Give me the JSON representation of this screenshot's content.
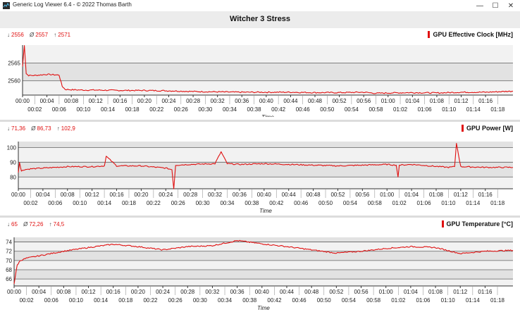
{
  "window": {
    "title": "Generic Log Viewer 6.4 - © 2022 Thomas Barth",
    "minimize_glyph": "—",
    "maximize_glyph": "☐",
    "close_glyph": "✕"
  },
  "page": {
    "title": "Witcher 3 Stress"
  },
  "colors": {
    "series": "#e01010",
    "band_light": "#f2f2f2",
    "band_dark": "#e2e2e2",
    "grid": "#606060"
  },
  "x_ticks_top": [
    "00:00",
    "00:04",
    "00:08",
    "00:12",
    "00:16",
    "00:20",
    "00:24",
    "00:28",
    "00:32",
    "00:36",
    "00:40",
    "00:44",
    "00:48",
    "00:52",
    "00:56",
    "01:00",
    "01:04",
    "01:08",
    "01:12",
    "01:16"
  ],
  "x_ticks_bottom": [
    "00:02",
    "00:06",
    "00:10",
    "00:14",
    "00:18",
    "00:22",
    "00:26",
    "00:30",
    "00:34",
    "00:38",
    "00:42",
    "00:46",
    "00:50",
    "00:54",
    "00:58",
    "01:02",
    "01:06",
    "01:10",
    "01:14",
    "01:18"
  ],
  "panels": [
    {
      "stats": {
        "min_symbol": "↓",
        "min": "2556",
        "avg_symbol": "Ø",
        "avg": "2557",
        "max_symbol": "↑",
        "max": "2571"
      },
      "legend": "GPU Effective Clock [MHz]",
      "xlabel": "Time"
    },
    {
      "stats": {
        "min_symbol": "↓",
        "min": "71,36",
        "avg_symbol": "Ø",
        "avg": "86,73",
        "max_symbol": "↑",
        "max": "102,9"
      },
      "legend": "GPU Power [W]",
      "xlabel": "Time"
    },
    {
      "stats": {
        "min_symbol": "↓",
        "min": "65",
        "avg_symbol": "Ø",
        "avg": "72,26",
        "max_symbol": "↑",
        "max": "74,5"
      },
      "legend": "GPU Temperature [°C]",
      "xlabel": "Time"
    }
  ],
  "chart_data": [
    {
      "type": "line",
      "ylabel": "GPU Effective Clock [MHz]",
      "xlabel": "Time",
      "xlim_minutes": [
        0,
        80.5
      ],
      "ylim": [
        2556,
        2570
      ],
      "yticks": [
        2560,
        2565
      ],
      "grid": true,
      "series": [
        {
          "name": "GPU Effective Clock [MHz]",
          "x": [
            0,
            0.3,
            0.6,
            1,
            2,
            4,
            6,
            6.5,
            7,
            8,
            10,
            12,
            16,
            20,
            24,
            28,
            32,
            36,
            40,
            44,
            48,
            52,
            56,
            58,
            60,
            64,
            68,
            72,
            76,
            80.5
          ],
          "y": [
            2564,
            2570,
            2562,
            2561.5,
            2561.5,
            2561.8,
            2561.6,
            2558.5,
            2557.6,
            2557.5,
            2557.4,
            2557.4,
            2557.3,
            2557.3,
            2557.2,
            2557.0,
            2556.9,
            2556.8,
            2556.8,
            2556.8,
            2556.7,
            2556.7,
            2556.8,
            2556.5,
            2556.6,
            2556.7,
            2556.6,
            2556.8,
            2556.8,
            2557.1
          ]
        }
      ]
    },
    {
      "type": "line",
      "ylabel": "GPU Power [W]",
      "xlabel": "Time",
      "xlim_minutes": [
        0,
        80.5
      ],
      "ylim": [
        72,
        104
      ],
      "yticks": [
        80,
        90,
        100
      ],
      "grid": true,
      "series": [
        {
          "name": "GPU Power [W]",
          "x": [
            0,
            0.2,
            0.5,
            1,
            2,
            4,
            8,
            12,
            14,
            14.3,
            16,
            20,
            24,
            25,
            25.3,
            25.6,
            28,
            32,
            33,
            34,
            36,
            40,
            44,
            48,
            52,
            56,
            60,
            61.5,
            61.8,
            62,
            64,
            70,
            71,
            71.3,
            72,
            76,
            80.5
          ],
          "y": [
            83,
            90,
            84,
            85,
            85.5,
            86,
            87,
            87,
            87.5,
            94,
            87.5,
            87.5,
            86,
            85,
            72,
            88,
            88.5,
            89,
            97,
            89,
            88.5,
            89,
            88.5,
            88,
            87.5,
            88,
            88.5,
            88,
            80,
            88,
            88.5,
            86.5,
            87,
            102.9,
            87,
            86.5,
            86.5
          ]
        }
      ]
    },
    {
      "type": "line",
      "ylabel": "GPU Temperature [°C]",
      "xlabel": "Time",
      "xlim_minutes": [
        0,
        80.5
      ],
      "ylim": [
        64.5,
        75
      ],
      "yticks": [
        66,
        68,
        70,
        72,
        74
      ],
      "grid": true,
      "series": [
        {
          "name": "GPU Temperature [°C]",
          "x": [
            0,
            0.5,
            1,
            2,
            4,
            8,
            12,
            16,
            20,
            24,
            28,
            32,
            36,
            40,
            44,
            48,
            52,
            56,
            60,
            64,
            68,
            72,
            76,
            80.5
          ],
          "y": [
            65,
            69,
            70,
            70.5,
            71,
            72,
            72.8,
            73.5,
            73,
            72.3,
            73,
            73.2,
            74.3,
            73.6,
            73,
            72.3,
            71.6,
            72,
            72.6,
            73,
            72.8,
            71.5,
            72,
            72.2
          ]
        }
      ]
    }
  ]
}
